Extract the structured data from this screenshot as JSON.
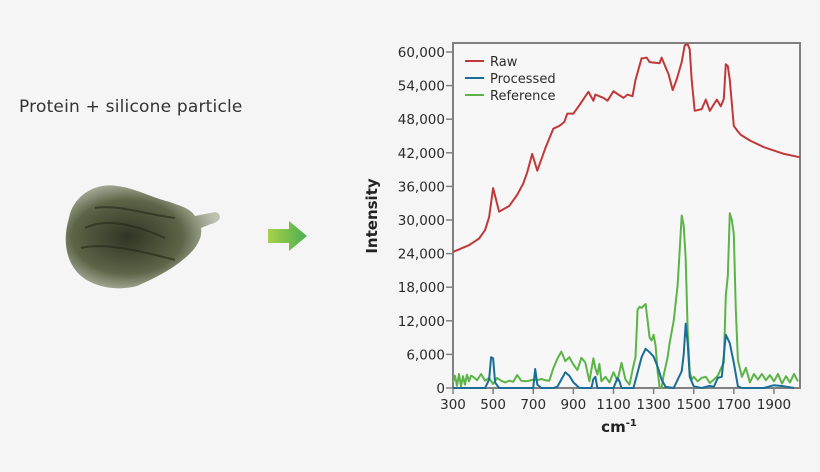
{
  "caption": "Protein + silicone particle",
  "icons": {
    "arrow": "right-arrow-icon",
    "particle": "particle-image"
  },
  "colors": {
    "raw": "#c0393a",
    "processed": "#1a6d97",
    "reference": "#5cb448",
    "arrow_start": "#a8d04a",
    "arrow_end": "#4caf50",
    "frame": "#808080"
  },
  "chart_data": {
    "type": "line",
    "title": "",
    "xlabel": "cm-1",
    "ylabel": "Intensity",
    "xlim": [
      300,
      2030
    ],
    "ylim": [
      0,
      62000
    ],
    "x_ticks": [
      300,
      500,
      700,
      900,
      1100,
      1300,
      1500,
      1700,
      1900
    ],
    "x_tick_labels": [
      "300",
      "500",
      "700",
      "900",
      "1100",
      "1300",
      "1500",
      "1700",
      "1900"
    ],
    "y_ticks": [
      0,
      6000,
      12000,
      18000,
      24000,
      30000,
      36000,
      42000,
      48000,
      54000,
      60000
    ],
    "y_tick_labels": [
      "0",
      "6,000",
      "12,000",
      "18,000",
      "24,000",
      "30,000",
      "36,000",
      "42,000",
      "48,000",
      "54,000",
      "60,000"
    ],
    "grid": false,
    "legend_position": "upper left",
    "series": [
      {
        "name": "Raw",
        "color": "#c0393a",
        "x": [
          300,
          380,
          430,
          460,
          480,
          500,
          530,
          580,
          620,
          650,
          670,
          695,
          720,
          760,
          800,
          830,
          855,
          870,
          900,
          930,
          975,
          1000,
          1010,
          1050,
          1070,
          1100,
          1120,
          1150,
          1170,
          1195,
          1210,
          1240,
          1250,
          1265,
          1280,
          1330,
          1340,
          1375,
          1395,
          1415,
          1440,
          1455,
          1470,
          1480,
          1490,
          1505,
          1540,
          1560,
          1580,
          1615,
          1635,
          1650,
          1660,
          1670,
          1680,
          1700,
          1720,
          1735,
          1780,
          1850,
          1950,
          2030
        ],
        "y": [
          24300,
          25500,
          26700,
          28200,
          30500,
          35700,
          31500,
          32500,
          34500,
          36500,
          38500,
          41800,
          38800,
          42800,
          46300,
          46800,
          47500,
          49000,
          49000,
          50500,
          52900,
          51300,
          52400,
          51800,
          51300,
          53000,
          52500,
          51800,
          52400,
          52100,
          55000,
          58900,
          58900,
          59000,
          58200,
          58000,
          59000,
          56000,
          53200,
          55100,
          58200,
          61200,
          61400,
          60500,
          55000,
          49500,
          49800,
          51500,
          49500,
          51500,
          50300,
          51600,
          57800,
          57500,
          55000,
          46800,
          45800,
          45200,
          44200,
          43000,
          41800,
          41200
        ]
      },
      {
        "name": "Processed",
        "color": "#1a6d97",
        "x": [
          300,
          460,
          480,
          490,
          500,
          510,
          530,
          560,
          640,
          700,
          710,
          720,
          740,
          800,
          820,
          840,
          860,
          880,
          900,
          930,
          960,
          990,
          1000,
          1010,
          1020,
          1100,
          1120,
          1130,
          1140,
          1200,
          1240,
          1260,
          1280,
          1300,
          1320,
          1340,
          1360,
          1400,
          1420,
          1440,
          1450,
          1460,
          1470,
          1480,
          1500,
          1540,
          1580,
          1600,
          1620,
          1640,
          1660,
          1680,
          1700,
          1720,
          1740,
          1780,
          1850,
          1900,
          1950,
          2000
        ],
        "y": [
          0,
          0,
          1500,
          5500,
          5300,
          1000,
          0,
          0,
          0,
          0,
          3400,
          600,
          0,
          0,
          200,
          1500,
          2800,
          2200,
          1000,
          0,
          0,
          0,
          1600,
          2000,
          0,
          0,
          1800,
          1200,
          0,
          0,
          5500,
          7000,
          6400,
          5600,
          3800,
          1500,
          200,
          0,
          1500,
          3000,
          6000,
          11500,
          8000,
          2000,
          300,
          0,
          400,
          200,
          1800,
          2000,
          9500,
          8000,
          4500,
          300,
          0,
          0,
          0,
          500,
          300,
          0
        ]
      },
      {
        "name": "Reference",
        "color": "#5cb448",
        "x": [
          300,
          310,
          320,
          330,
          340,
          350,
          360,
          370,
          380,
          390,
          400,
          420,
          440,
          460,
          480,
          500,
          520,
          540,
          560,
          580,
          600,
          620,
          640,
          660,
          680,
          700,
          720,
          740,
          760,
          780,
          800,
          820,
          840,
          860,
          880,
          900,
          920,
          940,
          960,
          980,
          1000,
          1010,
          1020,
          1030,
          1040,
          1060,
          1080,
          1100,
          1120,
          1140,
          1160,
          1180,
          1200,
          1210,
          1220,
          1230,
          1240,
          1260,
          1270,
          1280,
          1290,
          1300,
          1310,
          1320,
          1330,
          1340,
          1350,
          1370,
          1380,
          1400,
          1420,
          1440,
          1450,
          1460,
          1470,
          1480,
          1490,
          1500,
          1520,
          1540,
          1560,
          1580,
          1600,
          1620,
          1640,
          1650,
          1660,
          1670,
          1680,
          1690,
          1700,
          1710,
          1720,
          1740,
          1760,
          1780,
          1800,
          1820,
          1840,
          1860,
          1880,
          1900,
          1920,
          1940,
          1960,
          1980,
          2000,
          2020
        ],
        "y": [
          1000,
          2200,
          400,
          2500,
          300,
          2100,
          600,
          2400,
          1200,
          2200,
          2000,
          1400,
          2500,
          1300,
          1800,
          700,
          1800,
          1300,
          1000,
          1300,
          1100,
          2300,
          1300,
          1200,
          1300,
          1500,
          1400,
          1600,
          1400,
          1300,
          3500,
          5200,
          6500,
          4800,
          5500,
          4200,
          3200,
          5400,
          4500,
          1200,
          5300,
          3500,
          2400,
          4300,
          1200,
          2000,
          1000,
          2800,
          1300,
          4500,
          1500,
          600,
          4000,
          5500,
          14000,
          14500,
          14300,
          15000,
          12000,
          9000,
          8500,
          9500,
          7500,
          3000,
          200,
          0,
          2200,
          5500,
          8000,
          12000,
          18500,
          30800,
          29000,
          23000,
          10000,
          3000,
          1500,
          2000,
          1200,
          1800,
          2000,
          900,
          1500,
          2200,
          3800,
          4500,
          16500,
          20000,
          31200,
          30000,
          27500,
          14000,
          5000,
          2000,
          3600,
          1000,
          2500,
          1500,
          2500,
          1400,
          2300,
          1200,
          2500,
          800,
          2100,
          1000,
          2500,
          1200
        ]
      }
    ]
  }
}
